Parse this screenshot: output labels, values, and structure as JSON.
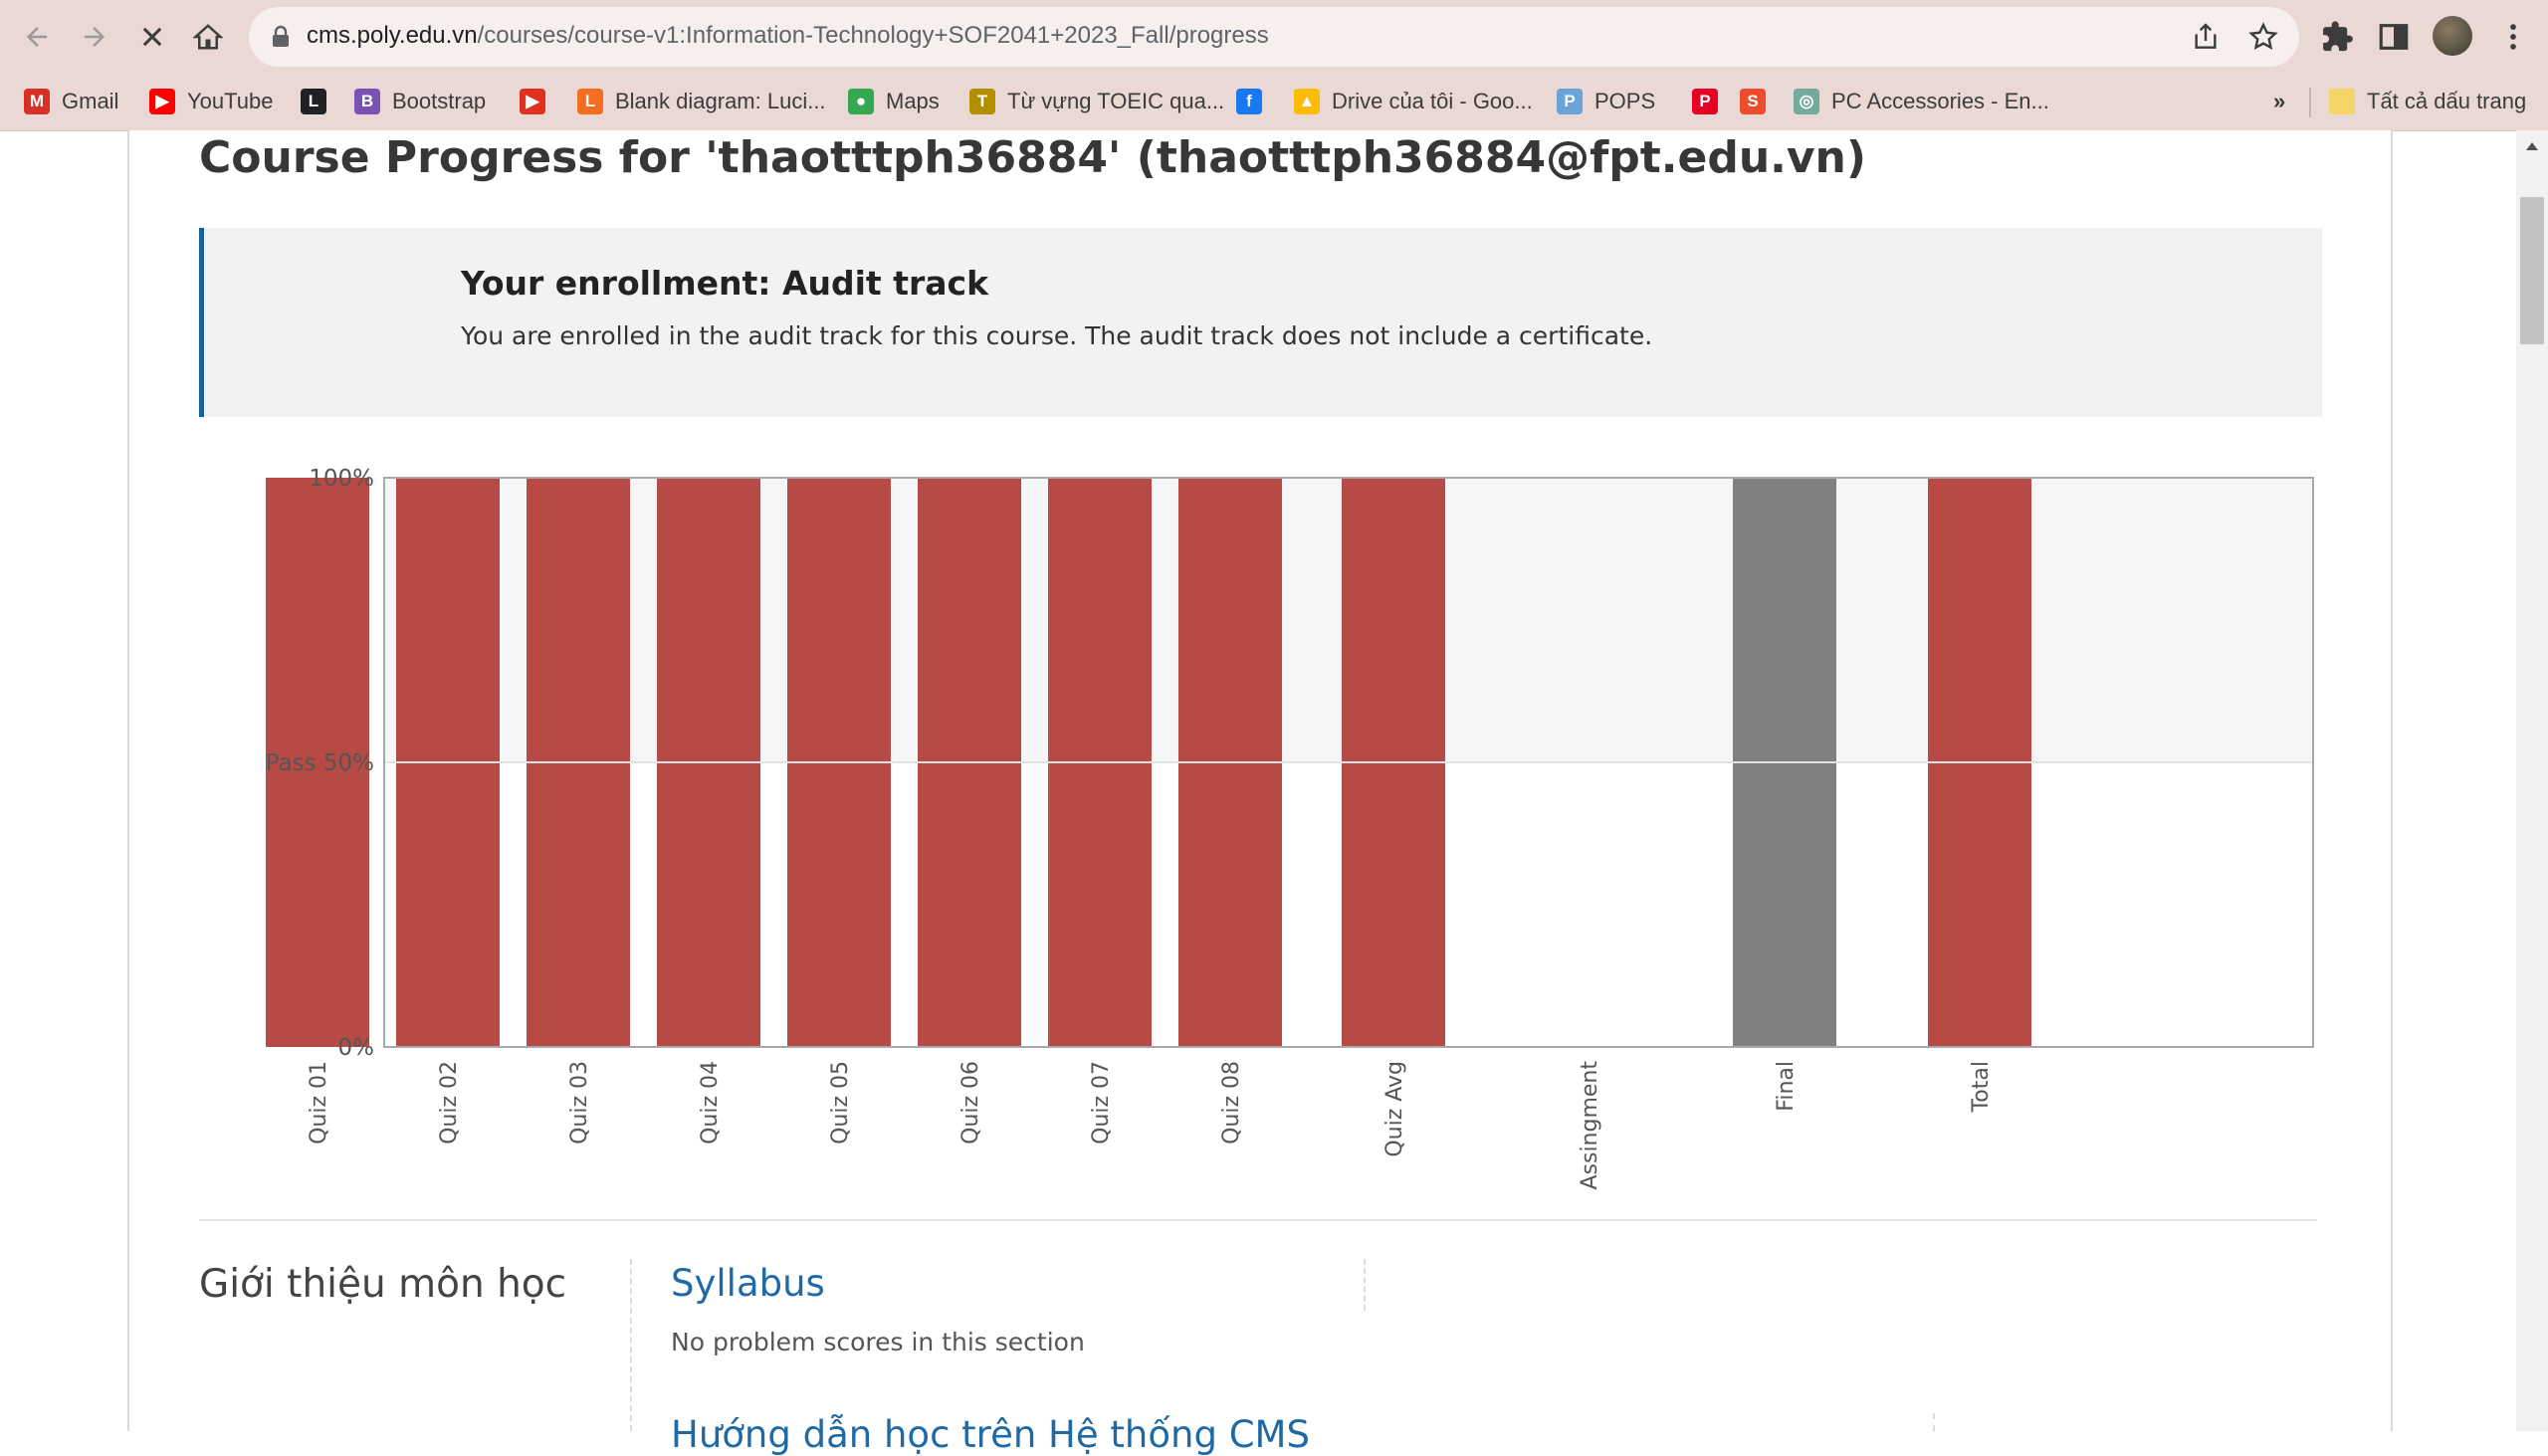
{
  "browser": {
    "url_host": "cms.poly.edu.vn",
    "url_path": "/courses/course-v1:Information-Technology+SOF2041+2023_Fall/progress",
    "bookmarks": [
      {
        "label": "Gmail",
        "icon": "gmail-icon",
        "color": "#d93025",
        "glyph": "M"
      },
      {
        "label": "YouTube",
        "icon": "youtube-icon",
        "color": "#ff0000",
        "glyph": "▶"
      },
      {
        "label": "",
        "icon": "l-icon",
        "color": "#202124",
        "glyph": "L"
      },
      {
        "label": "Bootstrap",
        "icon": "bootstrap-icon",
        "color": "#7952b3",
        "glyph": "B"
      },
      {
        "label": "",
        "icon": "play-circle-icon",
        "color": "#e0301e",
        "glyph": "▶"
      },
      {
        "label": "Blank diagram: Luci...",
        "icon": "lucid-icon",
        "color": "#f36e21",
        "glyph": "L"
      },
      {
        "label": "Maps",
        "icon": "maps-icon",
        "color": "#34a853",
        "glyph": "●"
      },
      {
        "label": "Từ vựng TOEIC qua...",
        "icon": "toeic-icon",
        "color": "#b38f00",
        "glyph": "T"
      },
      {
        "label": "",
        "icon": "facebook-icon",
        "color": "#1877f2",
        "glyph": "f"
      },
      {
        "label": "Drive của tôi - Goo...",
        "icon": "drive-icon",
        "color": "#fbbc04",
        "glyph": "▲"
      },
      {
        "label": "POPS",
        "icon": "pops-icon",
        "color": "#6aa3d8",
        "glyph": "P"
      },
      {
        "label": "",
        "icon": "pinterest-icon",
        "color": "#e60023",
        "glyph": "P"
      },
      {
        "label": "",
        "icon": "shopee-icon",
        "color": "#ee4d2d",
        "glyph": "S"
      },
      {
        "label": "PC Accessories - En...",
        "icon": "openai-icon",
        "color": "#74aa9c",
        "glyph": "◎"
      }
    ],
    "more_label": "»",
    "all_bookmarks_label": "Tất cả dấu trang"
  },
  "page": {
    "title": "Course Progress for 'thaotttph36884' (thaotttph36884@fpt.edu.vn)",
    "enrollment_title": "Your enrollment: Audit track",
    "enrollment_text": "You are enrolled in the audit track for this course. The audit track does not include a certificate."
  },
  "chart_data": {
    "type": "bar",
    "categories": [
      "Quiz 01",
      "Quiz 02",
      "Quiz 03",
      "Quiz 04",
      "Quiz 05",
      "Quiz 06",
      "Quiz 07",
      "Quiz 08",
      "Quiz Avg",
      "Assingment",
      "Final",
      "Total"
    ],
    "values": [
      100,
      100,
      100,
      100,
      100,
      100,
      100,
      100,
      100,
      0,
      100,
      100
    ],
    "bar_colors": [
      "#b74a44",
      "#b74a44",
      "#b74a44",
      "#b74a44",
      "#b74a44",
      "#b74a44",
      "#b74a44",
      "#b74a44",
      "#b74a44",
      "#b74a44",
      "#808080",
      "#b74a44"
    ],
    "ytick_labels": [
      "0%",
      "Pass 50%",
      "100%"
    ],
    "ytick_values": [
      0,
      50,
      100
    ],
    "ylim": [
      0,
      100
    ],
    "pass_band_color": "#f5f6f8",
    "grid": false
  },
  "sections": [
    {
      "title": "Giới thiệu môn học",
      "subsections": [
        {
          "title": "Syllabus",
          "note": "No problem scores in this section"
        },
        {
          "title": "Hướng dẫn học trên Hệ thống CMS",
          "note": ""
        }
      ]
    }
  ]
}
